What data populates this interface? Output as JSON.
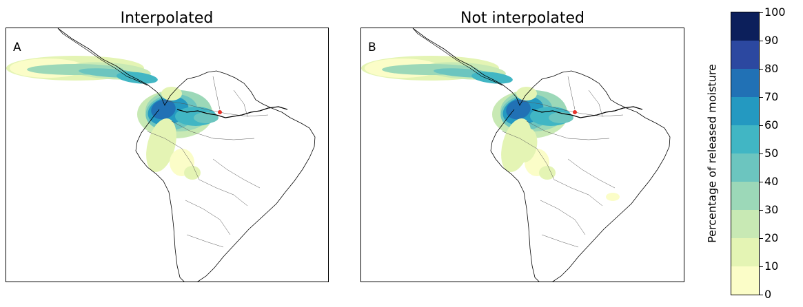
{
  "panels": [
    {
      "title": "Interpolated",
      "letter": "A"
    },
    {
      "title": "Not interpolated",
      "letter": "B"
    }
  ],
  "colorbar": {
    "label": "Percentage of released moisture",
    "ticks": [
      "0",
      "10",
      "20",
      "30",
      "40",
      "50",
      "60",
      "70",
      "80",
      "90",
      "100"
    ],
    "bins": [
      {
        "from": 0,
        "to": 10,
        "color": "#fbfdc8"
      },
      {
        "from": 10,
        "to": 20,
        "color": "#e4f4b4"
      },
      {
        "from": 20,
        "to": 30,
        "color": "#c8e9b4"
      },
      {
        "from": 30,
        "to": 40,
        "color": "#9cd8b8"
      },
      {
        "from": 40,
        "to": 50,
        "color": "#6cc5bf"
      },
      {
        "from": 50,
        "to": 60,
        "color": "#41b6c4"
      },
      {
        "from": 60,
        "to": 70,
        "color": "#2499c1"
      },
      {
        "from": 70,
        "to": 80,
        "color": "#2171b5"
      },
      {
        "from": 80,
        "to": 90,
        "color": "#2c48a0"
      },
      {
        "from": 90,
        "to": 100,
        "color": "#0c1f5b"
      }
    ]
  },
  "colors": {
    "source_point": "#e8332a",
    "coastline": "#000000",
    "borders": "#555555"
  }
}
